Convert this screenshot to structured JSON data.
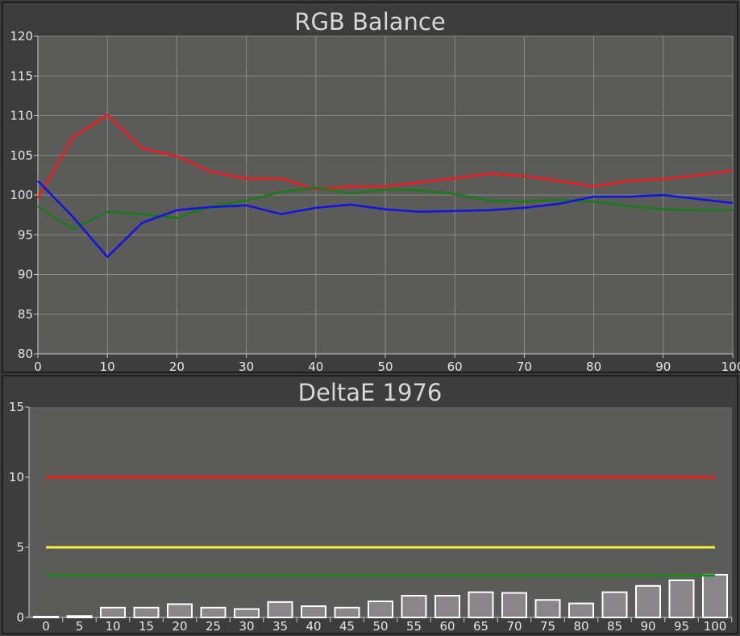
{
  "chart_data": [
    {
      "type": "line",
      "title": "RGB Balance",
      "xlabel": "",
      "ylabel": "",
      "xlim": [
        0,
        100
      ],
      "ylim": [
        80,
        120
      ],
      "x_ticks": [
        "0",
        "10",
        "20",
        "30",
        "40",
        "50",
        "60",
        "70",
        "80",
        "90",
        "100"
      ],
      "y_ticks": [
        "80",
        "85",
        "90",
        "95",
        "100",
        "105",
        "110",
        "115",
        "120"
      ],
      "grid": true,
      "x": [
        0,
        5,
        10,
        15,
        20,
        25,
        30,
        35,
        40,
        45,
        50,
        55,
        60,
        65,
        70,
        75,
        80,
        85,
        90,
        95,
        100
      ],
      "series": [
        {
          "color": "#ee1c1c",
          "values": [
            99.6,
            107.2,
            110.1,
            105.9,
            104.9,
            102.9,
            102.1,
            102.1,
            100.7,
            101.1,
            101.1,
            101.6,
            102.1,
            102.7,
            102.4,
            101.8,
            101.1,
            101.8,
            102.0,
            102.5,
            103.1
          ]
        },
        {
          "color": "#1a7a1a",
          "values": [
            98.6,
            95.7,
            97.9,
            97.6,
            97.1,
            98.6,
            99.3,
            100.4,
            100.9,
            100.2,
            100.7,
            100.6,
            100.1,
            99.3,
            99.2,
            99.4,
            99.2,
            98.6,
            98.2,
            98.1,
            98.1
          ]
        },
        {
          "color": "#1414e0",
          "values": [
            101.8,
            97.3,
            92.2,
            96.5,
            98.1,
            98.5,
            98.7,
            97.6,
            98.4,
            98.8,
            98.2,
            97.9,
            98.0,
            98.1,
            98.4,
            98.9,
            99.8,
            99.8,
            100.0,
            99.5,
            99.0
          ]
        }
      ]
    },
    {
      "type": "bar",
      "title": "DeltaE 1976",
      "xlabel": "",
      "ylabel": "",
      "ylim": [
        0,
        15
      ],
      "y_ticks": [
        "0",
        "5",
        "10",
        "15"
      ],
      "categories": [
        "0",
        "5",
        "10",
        "15",
        "20",
        "25",
        "30",
        "35",
        "40",
        "45",
        "50",
        "55",
        "60",
        "65",
        "70",
        "75",
        "80",
        "85",
        "90",
        "95",
        "100"
      ],
      "values": [
        0.0,
        0.1,
        0.7,
        0.7,
        0.95,
        0.7,
        0.6,
        1.1,
        0.8,
        0.7,
        1.15,
        1.55,
        1.55,
        1.8,
        1.75,
        1.25,
        1.0,
        1.8,
        2.25,
        2.65,
        3.05
      ],
      "bar_color": "#8a8589",
      "reference_lines": [
        {
          "value": 10,
          "color": "#e81c1c"
        },
        {
          "value": 5,
          "color": "#f2f23a"
        },
        {
          "value": 3,
          "color": "#1a8a1a"
        }
      ]
    }
  ]
}
